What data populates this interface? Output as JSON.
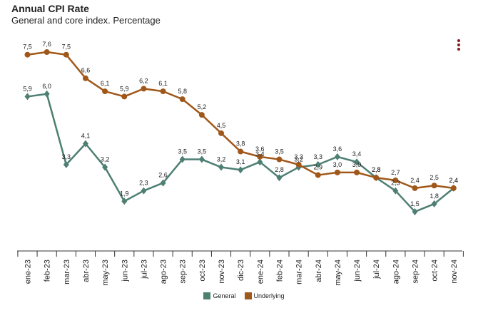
{
  "header": {
    "title": "Annual CPI Rate",
    "subtitle": "General and core index. Percentage"
  },
  "colors": {
    "general": "#4e7f73",
    "underlying": "#a0581a",
    "axis": "#333333"
  },
  "menu_icon": "vertical-ellipsis-icon",
  "chart_data": {
    "type": "line",
    "title": "Annual CPI Rate",
    "subtitle": "General and core index. Percentage",
    "xlabel": "",
    "ylabel": "",
    "ylim": [
      0,
      8.5
    ],
    "grid": false,
    "legend_position": "bottom-center",
    "categories": [
      "ene-23",
      "feb-23",
      "mar-23",
      "abr-23",
      "may-23",
      "jun-23",
      "jul-23",
      "ago-23",
      "sep-23",
      "oct-23",
      "nov-23",
      "dic-23",
      "ene-24",
      "feb-24",
      "mar-24",
      "abr-24",
      "may-24",
      "jun-24",
      "jul-24",
      "ago-24",
      "sep-24",
      "oct-24",
      "nov-24"
    ],
    "series": [
      {
        "name": "General",
        "marker": "diamond",
        "color": "#4e7f73",
        "values": [
          5.9,
          6.0,
          3.3,
          4.1,
          3.2,
          1.9,
          2.3,
          2.6,
          3.5,
          3.5,
          3.2,
          3.1,
          3.4,
          2.8,
          3.2,
          3.3,
          3.6,
          3.4,
          2.8,
          2.3,
          1.5,
          1.8,
          2.4
        ],
        "labels": [
          "5,9",
          "6,0",
          "3,3",
          "4,1",
          "3,2",
          "1,9",
          "2,3",
          "2,6",
          "3,5",
          "3,5",
          "3,2",
          "3,1",
          "3,4",
          "2,8",
          "3,2",
          "3,3",
          "3,6",
          "3,4",
          "2,8",
          "2,3",
          "1,5",
          "1,8",
          "2,4"
        ]
      },
      {
        "name": "Underlying",
        "marker": "circle",
        "color": "#a0581a",
        "values": [
          7.5,
          7.6,
          7.5,
          6.6,
          6.1,
          5.9,
          6.2,
          6.1,
          5.8,
          5.2,
          4.5,
          3.8,
          3.6,
          3.5,
          3.3,
          2.9,
          3.0,
          3.0,
          2.8,
          2.7,
          2.4,
          2.5,
          2.4
        ],
        "labels": [
          "7,5",
          "7,6",
          "7,5",
          "6,6",
          "6,1",
          "5,9",
          "6,2",
          "6,1",
          "5,8",
          "5,2",
          "4,5",
          "3,8",
          "3,6",
          "3,5",
          "3,3",
          "2,9",
          "3,0",
          "3,0",
          "2,8",
          "2,7",
          "2,4",
          "2,5",
          "2,4"
        ]
      }
    ]
  }
}
